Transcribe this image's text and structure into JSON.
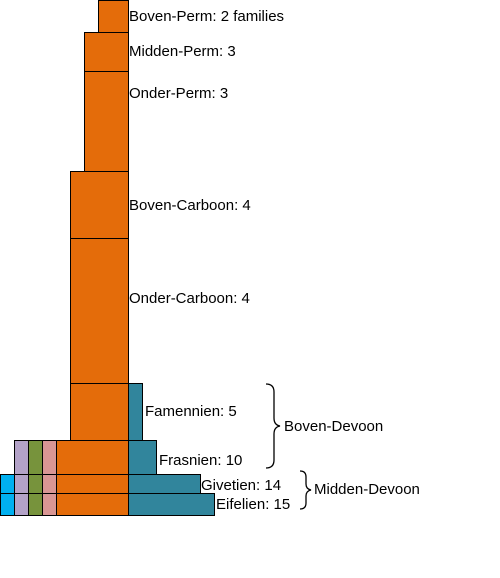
{
  "colors": {
    "orange": "#e46c0a",
    "teal": "#31859c",
    "lilac": "#b3a2c7",
    "green": "#77933c",
    "pink": "#d99694",
    "sky": "#00b0f0",
    "outline": "#000000"
  },
  "periods": [
    {
      "label": "Boven-Perm: 2 families"
    },
    {
      "label": "Midden-Perm: 3"
    },
    {
      "label": "Onder-Perm: 3"
    },
    {
      "label": "Boven-Carboon: 4"
    },
    {
      "label": "Onder-Carboon: 4"
    },
    {
      "label": "Famennien: 5"
    },
    {
      "label": "Frasnien: 10"
    },
    {
      "label": "Givetien: 14"
    },
    {
      "label": "Eifelien: 15"
    }
  ],
  "groups": {
    "boven_devoon": "Boven-Devoon",
    "midden_devoon": "Midden-Devoon"
  }
}
